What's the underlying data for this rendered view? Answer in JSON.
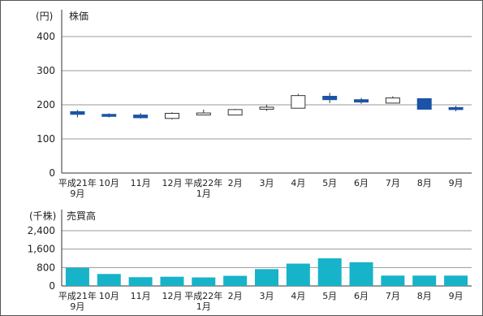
{
  "chart_data": [
    {
      "type": "candlestick",
      "title": "株価",
      "unit": "(円)",
      "ylim": [
        0,
        400
      ],
      "yticks": [
        "0",
        "100",
        "200",
        "300",
        "400"
      ],
      "grid": true,
      "categories": [
        {
          "line1": "平成21年",
          "line2": "9月"
        },
        {
          "line1": "10月",
          "line2": ""
        },
        {
          "line1": "11月",
          "line2": ""
        },
        {
          "line1": "12月",
          "line2": ""
        },
        {
          "line1": "平成22年",
          "line2": "1月"
        },
        {
          "line1": "2月",
          "line2": ""
        },
        {
          "line1": "3月",
          "line2": ""
        },
        {
          "line1": "4月",
          "line2": ""
        },
        {
          "line1": "5月",
          "line2": ""
        },
        {
          "line1": "6月",
          "line2": ""
        },
        {
          "line1": "7月",
          "line2": ""
        },
        {
          "line1": "8月",
          "line2": ""
        },
        {
          "line1": "9月",
          "line2": ""
        }
      ],
      "ohlc": [
        {
          "open": 180,
          "high": 185,
          "low": 163,
          "close": 172
        },
        {
          "open": 172,
          "high": 175,
          "low": 163,
          "close": 168
        },
        {
          "open": 170,
          "high": 176,
          "low": 160,
          "close": 162
        },
        {
          "open": 160,
          "high": 178,
          "low": 157,
          "close": 175
        },
        {
          "open": 172,
          "high": 186,
          "low": 170,
          "close": 176
        },
        {
          "open": 170,
          "high": 188,
          "low": 170,
          "close": 186
        },
        {
          "open": 187,
          "high": 200,
          "low": 182,
          "close": 193
        },
        {
          "open": 190,
          "high": 232,
          "low": 190,
          "close": 227
        },
        {
          "open": 225,
          "high": 235,
          "low": 205,
          "close": 215
        },
        {
          "open": 215,
          "high": 220,
          "low": 203,
          "close": 208
        },
        {
          "open": 205,
          "high": 225,
          "low": 205,
          "close": 220
        },
        {
          "open": 218,
          "high": 218,
          "low": 187,
          "close": 187
        },
        {
          "open": 192,
          "high": 197,
          "low": 181,
          "close": 186
        }
      ],
      "up_color": "#ffffff",
      "down_color": "#1a54a6"
    },
    {
      "type": "bar",
      "title": "売買高",
      "unit": "(千株)",
      "ylim": [
        0,
        2400
      ],
      "yticks": [
        "0",
        "800",
        "1,600",
        "2,400"
      ],
      "grid": true,
      "categories": [
        {
          "line1": "平成21年",
          "line2": "9月"
        },
        {
          "line1": "10月",
          "line2": ""
        },
        {
          "line1": "11月",
          "line2": ""
        },
        {
          "line1": "12月",
          "line2": ""
        },
        {
          "line1": "平成22年",
          "line2": "1月"
        },
        {
          "line1": "2月",
          "line2": ""
        },
        {
          "line1": "3月",
          "line2": ""
        },
        {
          "line1": "4月",
          "line2": ""
        },
        {
          "line1": "5月",
          "line2": ""
        },
        {
          "line1": "6月",
          "line2": ""
        },
        {
          "line1": "7月",
          "line2": ""
        },
        {
          "line1": "8月",
          "line2": ""
        },
        {
          "line1": "9月",
          "line2": ""
        }
      ],
      "values": [
        790,
        520,
        380,
        400,
        370,
        440,
        730,
        970,
        1200,
        1030,
        450,
        450,
        450
      ],
      "bar_color": "#17b3c9"
    }
  ]
}
